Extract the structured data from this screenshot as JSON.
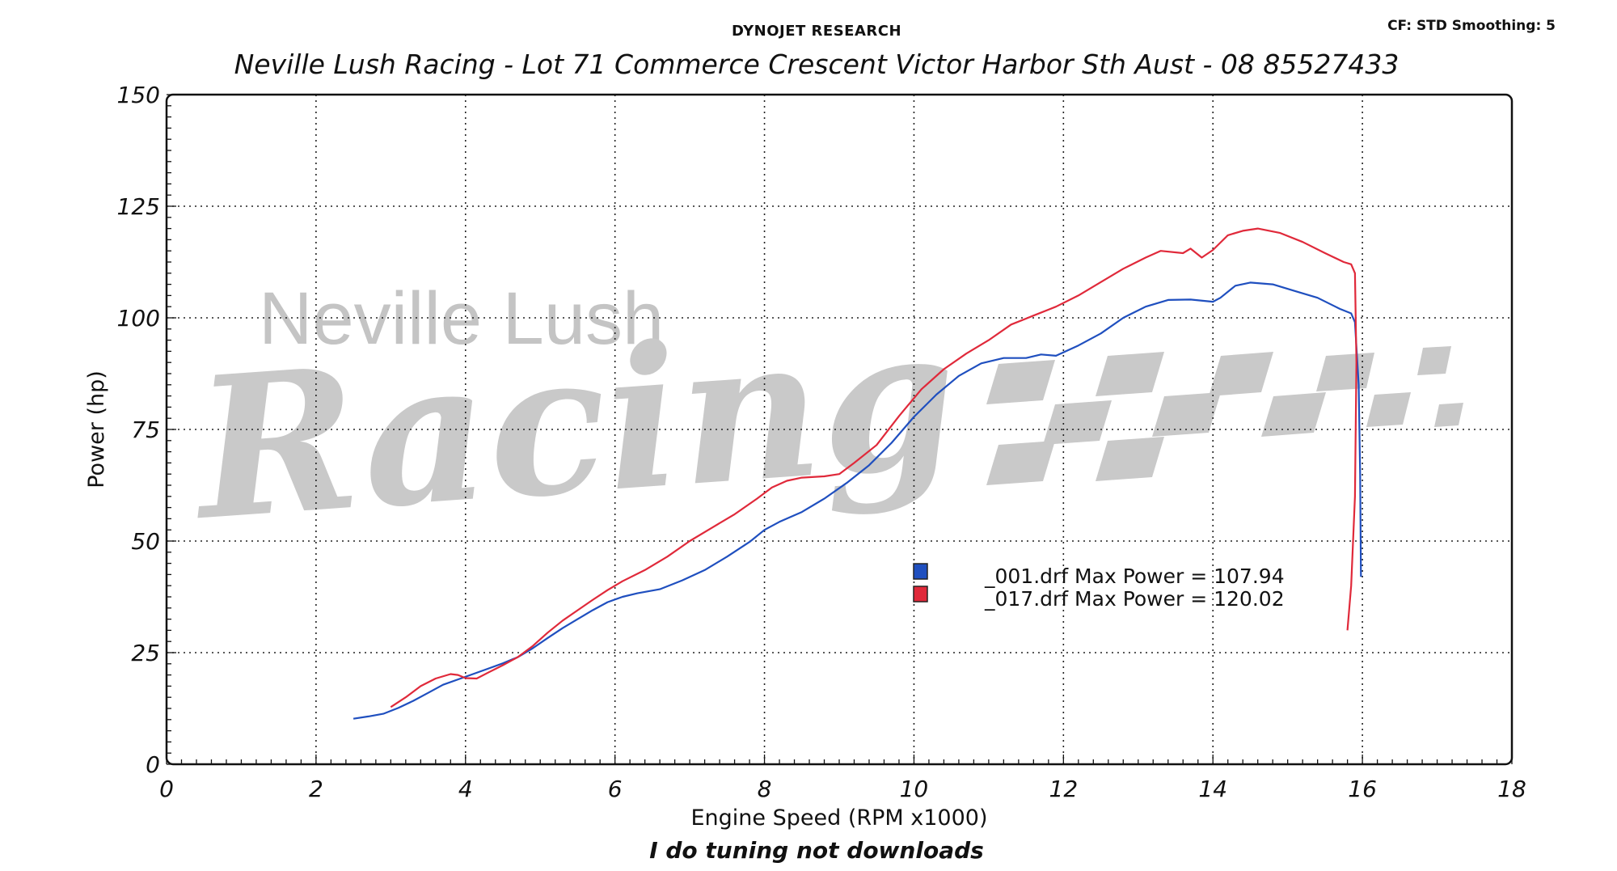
{
  "header": {
    "brand": "DYNOJET RESEARCH",
    "cf_info": "CF: STD  Smoothing: 5",
    "shop_line": "Neville Lush Racing  - Lot 71 Commerce Crescent  Victor Harbor Sth Aust  - 08 85527433"
  },
  "footer": {
    "tagline": "I do tuning not downloads"
  },
  "watermark": {
    "line1": "Neville Lush",
    "line2": "Racing"
  },
  "chart_data": {
    "type": "line",
    "title": "",
    "xlabel": "Engine Speed (RPM x1000)",
    "ylabel": "Power (hp)",
    "xlim": [
      0,
      18
    ],
    "ylim": [
      0,
      150
    ],
    "xticks": [
      0,
      2,
      4,
      6,
      8,
      10,
      12,
      14,
      16,
      18
    ],
    "yticks": [
      0,
      25,
      50,
      75,
      100,
      125,
      150
    ],
    "grid": true,
    "legend": "center-right",
    "series": [
      {
        "name": "_001.drf Max Power = 107.94",
        "color": "#1f4fbf",
        "points": [
          [
            2.5,
            10.2
          ],
          [
            2.7,
            10.7
          ],
          [
            2.9,
            11.3
          ],
          [
            3.1,
            12.6
          ],
          [
            3.3,
            14.2
          ],
          [
            3.5,
            16.0
          ],
          [
            3.7,
            17.8
          ],
          [
            3.9,
            19.0
          ],
          [
            4.1,
            20.2
          ],
          [
            4.3,
            21.4
          ],
          [
            4.5,
            22.6
          ],
          [
            4.7,
            24.0
          ],
          [
            4.9,
            26.0
          ],
          [
            5.1,
            28.3
          ],
          [
            5.3,
            30.5
          ],
          [
            5.5,
            32.5
          ],
          [
            5.7,
            34.5
          ],
          [
            5.9,
            36.3
          ],
          [
            6.1,
            37.5
          ],
          [
            6.3,
            38.3
          ],
          [
            6.6,
            39.2
          ],
          [
            6.9,
            41.2
          ],
          [
            7.2,
            43.5
          ],
          [
            7.5,
            46.5
          ],
          [
            7.8,
            49.8
          ],
          [
            8.0,
            52.5
          ],
          [
            8.2,
            54.3
          ],
          [
            8.5,
            56.5
          ],
          [
            8.8,
            59.5
          ],
          [
            9.1,
            63.0
          ],
          [
            9.4,
            67.0
          ],
          [
            9.7,
            72.0
          ],
          [
            10.0,
            77.8
          ],
          [
            10.3,
            82.8
          ],
          [
            10.6,
            87.0
          ],
          [
            10.9,
            89.8
          ],
          [
            11.2,
            91.0
          ],
          [
            11.5,
            91.0
          ],
          [
            11.7,
            91.8
          ],
          [
            11.9,
            91.5
          ],
          [
            12.2,
            93.8
          ],
          [
            12.5,
            96.5
          ],
          [
            12.8,
            100.0
          ],
          [
            13.1,
            102.5
          ],
          [
            13.4,
            104.0
          ],
          [
            13.7,
            104.1
          ],
          [
            14.0,
            103.6
          ],
          [
            14.1,
            104.5
          ],
          [
            14.3,
            107.2
          ],
          [
            14.5,
            107.9
          ],
          [
            14.8,
            107.5
          ],
          [
            15.1,
            106.0
          ],
          [
            15.4,
            104.5
          ],
          [
            15.7,
            102.0
          ],
          [
            15.85,
            101.0
          ],
          [
            15.9,
            99.0
          ],
          [
            15.95,
            85.0
          ],
          [
            15.97,
            65.0
          ],
          [
            15.98,
            42.0
          ]
        ]
      },
      {
        "name": "_017.drf Max Power = 120.02",
        "color": "#e0293a",
        "points": [
          [
            3.0,
            12.8
          ],
          [
            3.2,
            15.0
          ],
          [
            3.4,
            17.5
          ],
          [
            3.6,
            19.2
          ],
          [
            3.8,
            20.2
          ],
          [
            3.9,
            20.0
          ],
          [
            4.0,
            19.3
          ],
          [
            4.15,
            19.2
          ],
          [
            4.3,
            20.5
          ],
          [
            4.5,
            22.2
          ],
          [
            4.7,
            24.0
          ],
          [
            4.9,
            26.5
          ],
          [
            5.1,
            29.5
          ],
          [
            5.3,
            32.2
          ],
          [
            5.5,
            34.5
          ],
          [
            5.7,
            36.8
          ],
          [
            5.9,
            39.0
          ],
          [
            6.1,
            41.0
          ],
          [
            6.4,
            43.5
          ],
          [
            6.7,
            46.5
          ],
          [
            7.0,
            50.0
          ],
          [
            7.3,
            53.0
          ],
          [
            7.6,
            56.0
          ],
          [
            7.9,
            59.5
          ],
          [
            8.1,
            62.0
          ],
          [
            8.3,
            63.5
          ],
          [
            8.5,
            64.2
          ],
          [
            8.8,
            64.5
          ],
          [
            9.0,
            65.0
          ],
          [
            9.2,
            67.5
          ],
          [
            9.5,
            71.5
          ],
          [
            9.8,
            78.0
          ],
          [
            10.1,
            84.0
          ],
          [
            10.4,
            88.5
          ],
          [
            10.7,
            92.0
          ],
          [
            11.0,
            95.0
          ],
          [
            11.3,
            98.5
          ],
          [
            11.6,
            100.5
          ],
          [
            11.9,
            102.5
          ],
          [
            12.2,
            105.0
          ],
          [
            12.5,
            108.0
          ],
          [
            12.8,
            111.0
          ],
          [
            13.1,
            113.5
          ],
          [
            13.3,
            115.0
          ],
          [
            13.6,
            114.5
          ],
          [
            13.7,
            115.5
          ],
          [
            13.85,
            113.5
          ],
          [
            14.0,
            115.2
          ],
          [
            14.2,
            118.5
          ],
          [
            14.4,
            119.5
          ],
          [
            14.6,
            120.0
          ],
          [
            14.9,
            119.0
          ],
          [
            15.2,
            117.0
          ],
          [
            15.5,
            114.5
          ],
          [
            15.75,
            112.5
          ],
          [
            15.85,
            112.0
          ],
          [
            15.9,
            110.0
          ],
          [
            15.92,
            90.0
          ],
          [
            15.9,
            60.0
          ],
          [
            15.85,
            40.0
          ],
          [
            15.8,
            30.0
          ]
        ]
      }
    ]
  }
}
